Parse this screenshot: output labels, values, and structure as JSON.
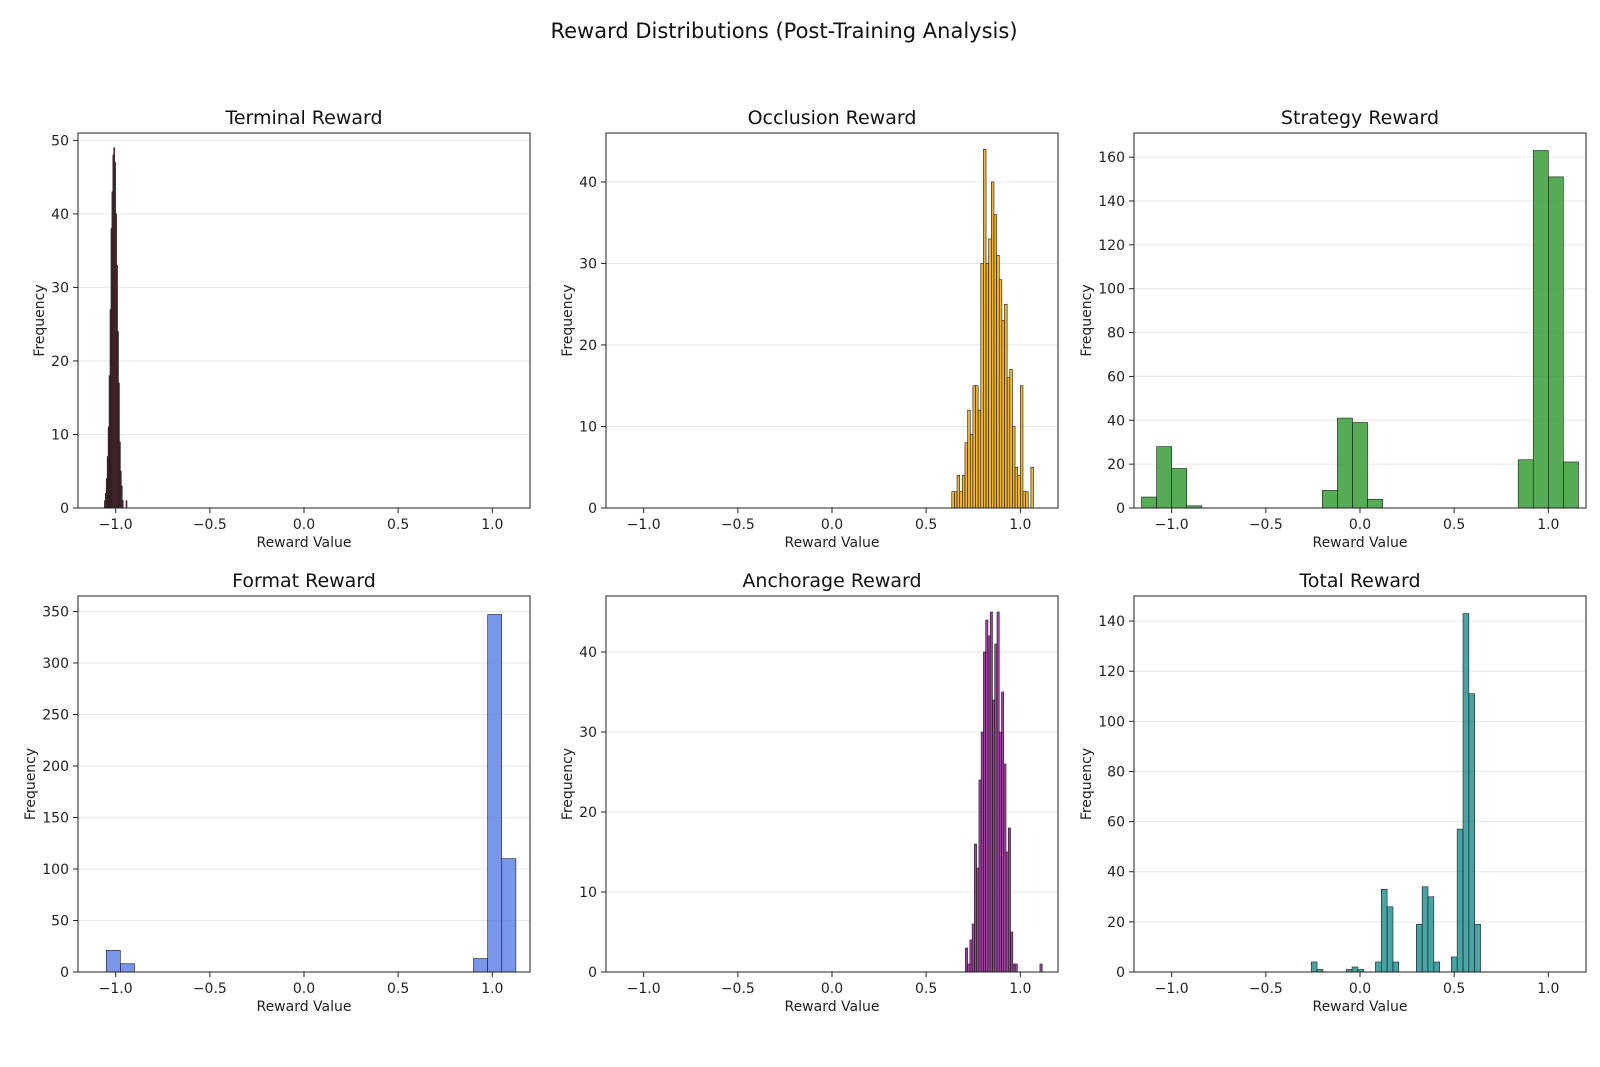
{
  "figure": {
    "title": "Reward Distributions (Post-Training Analysis)"
  },
  "chart_data": [
    {
      "type": "bar",
      "title": "Terminal Reward",
      "xlabel": "Reward Value",
      "ylabel": "Frequency",
      "color": "#8b1a2b",
      "xlim": [
        -1.2,
        1.2
      ],
      "ylim": [
        0,
        51
      ],
      "xticks": [
        -1.0,
        -0.5,
        0.0,
        0.5,
        1.0
      ],
      "xtick_labels": [
        "−1.0",
        "−0.5",
        "0.0",
        "0.5",
        "1.0"
      ],
      "yticks": [
        0,
        10,
        20,
        30,
        40,
        50
      ],
      "grid": true,
      "bin_width": 0.005,
      "bins": [
        [
          -1.06,
          1
        ],
        [
          -1.055,
          2
        ],
        [
          -1.05,
          4
        ],
        [
          -1.045,
          7
        ],
        [
          -1.04,
          11
        ],
        [
          -1.035,
          18
        ],
        [
          -1.03,
          27
        ],
        [
          -1.025,
          38
        ],
        [
          -1.02,
          43
        ],
        [
          -1.015,
          48
        ],
        [
          -1.01,
          49
        ],
        [
          -1.005,
          47
        ],
        [
          -1.0,
          40
        ],
        [
          -0.995,
          33
        ],
        [
          -0.99,
          24
        ],
        [
          -0.985,
          17
        ],
        [
          -0.98,
          9
        ],
        [
          -0.975,
          5
        ],
        [
          -0.97,
          3
        ],
        [
          -0.965,
          1
        ],
        [
          -0.945,
          1
        ]
      ]
    },
    {
      "type": "bar",
      "title": "Occlusion Reward",
      "xlabel": "Reward Value",
      "ylabel": "Frequency",
      "color": "#f0a500",
      "xlim": [
        -1.2,
        1.2
      ],
      "ylim": [
        0,
        46
      ],
      "xticks": [
        -1.0,
        -0.5,
        0.0,
        0.5,
        1.0
      ],
      "xtick_labels": [
        "−1.0",
        "−0.5",
        "0.0",
        "0.5",
        "1.0"
      ],
      "yticks": [
        0,
        10,
        20,
        30,
        40
      ],
      "grid": true,
      "bin_width": 0.014,
      "bins": [
        [
          0.636,
          2
        ],
        [
          0.65,
          2
        ],
        [
          0.664,
          4
        ],
        [
          0.678,
          2
        ],
        [
          0.692,
          4
        ],
        [
          0.706,
          8
        ],
        [
          0.72,
          12
        ],
        [
          0.734,
          9
        ],
        [
          0.748,
          15
        ],
        [
          0.762,
          15
        ],
        [
          0.776,
          12
        ],
        [
          0.79,
          30
        ],
        [
          0.804,
          44
        ],
        [
          0.818,
          30
        ],
        [
          0.832,
          33
        ],
        [
          0.846,
          40
        ],
        [
          0.86,
          36
        ],
        [
          0.874,
          31
        ],
        [
          0.888,
          28
        ],
        [
          0.902,
          23
        ],
        [
          0.916,
          25
        ],
        [
          0.93,
          16
        ],
        [
          0.944,
          17
        ],
        [
          0.958,
          10
        ],
        [
          0.972,
          5
        ],
        [
          0.986,
          4
        ],
        [
          1.0,
          15
        ],
        [
          1.014,
          2
        ],
        [
          1.028,
          2
        ],
        [
          1.056,
          5
        ]
      ]
    },
    {
      "type": "bar",
      "title": "Strategy Reward",
      "xlabel": "Reward Value",
      "ylabel": "Frequency",
      "color": "#2f9a2f",
      "xlim": [
        -1.2,
        1.2
      ],
      "ylim": [
        0,
        171
      ],
      "xticks": [
        -1.0,
        -0.5,
        0.0,
        0.5,
        1.0
      ],
      "xtick_labels": [
        "−1.0",
        "−0.5",
        "0.0",
        "0.5",
        "1.0"
      ],
      "yticks": [
        0,
        20,
        40,
        60,
        80,
        100,
        120,
        140,
        160
      ],
      "grid": true,
      "bin_width": 0.08,
      "bins": [
        [
          -1.16,
          5
        ],
        [
          -1.08,
          28
        ],
        [
          -1.0,
          18
        ],
        [
          -0.92,
          1
        ],
        [
          -0.2,
          8
        ],
        [
          -0.12,
          41
        ],
        [
          -0.04,
          39
        ],
        [
          0.04,
          4
        ],
        [
          0.84,
          22
        ],
        [
          0.92,
          163
        ],
        [
          1.0,
          151
        ],
        [
          1.08,
          21
        ]
      ]
    },
    {
      "type": "bar",
      "title": "Format Reward",
      "xlabel": "Reward Value",
      "ylabel": "Frequency",
      "color": "#5b7fe6",
      "xlim": [
        -1.2,
        1.2
      ],
      "ylim": [
        0,
        365
      ],
      "xticks": [
        -1.0,
        -0.5,
        0.0,
        0.5,
        1.0
      ],
      "xtick_labels": [
        "−1.0",
        "−0.5",
        "0.0",
        "0.5",
        "1.0"
      ],
      "yticks": [
        0,
        50,
        100,
        150,
        200,
        250,
        300,
        350
      ],
      "grid": true,
      "bin_width": 0.075,
      "bins": [
        [
          -1.05,
          21
        ],
        [
          -0.975,
          8
        ],
        [
          0.9,
          13
        ],
        [
          0.975,
          347
        ],
        [
          1.05,
          110
        ]
      ]
    },
    {
      "type": "bar",
      "title": "Anchorage Reward",
      "xlabel": "Reward Value",
      "ylabel": "Frequency",
      "color": "#8b1a8b",
      "xlim": [
        -1.2,
        1.2
      ],
      "ylim": [
        0,
        47
      ],
      "xticks": [
        -1.0,
        -0.5,
        0.0,
        0.5,
        1.0
      ],
      "xtick_labels": [
        "−1.0",
        "−0.5",
        "0.0",
        "0.5",
        "1.0"
      ],
      "yticks": [
        0,
        10,
        20,
        30,
        40
      ],
      "grid": true,
      "bin_width": 0.012,
      "bins": [
        [
          0.708,
          3
        ],
        [
          0.72,
          1
        ],
        [
          0.732,
          4
        ],
        [
          0.744,
          6
        ],
        [
          0.756,
          16
        ],
        [
          0.768,
          13
        ],
        [
          0.78,
          24
        ],
        [
          0.792,
          30
        ],
        [
          0.804,
          40
        ],
        [
          0.816,
          44
        ],
        [
          0.828,
          42
        ],
        [
          0.84,
          45
        ],
        [
          0.852,
          34
        ],
        [
          0.864,
          41
        ],
        [
          0.876,
          45
        ],
        [
          0.888,
          30
        ],
        [
          0.9,
          35
        ],
        [
          0.912,
          26
        ],
        [
          0.924,
          15
        ],
        [
          0.936,
          18
        ],
        [
          0.948,
          5
        ],
        [
          0.96,
          1
        ],
        [
          0.972,
          1
        ],
        [
          1.104,
          1
        ]
      ]
    },
    {
      "type": "bar",
      "title": "Total Reward",
      "xlabel": "Reward Value",
      "ylabel": "Frequency",
      "color": "#1f9090",
      "xlim": [
        -1.2,
        1.2
      ],
      "ylim": [
        0,
        150
      ],
      "xticks": [
        -1.0,
        -0.5,
        0.0,
        0.5,
        1.0
      ],
      "xtick_labels": [
        "−1.0",
        "−0.5",
        "0.0",
        "0.5",
        "1.0"
      ],
      "yticks": [
        0,
        20,
        40,
        60,
        80,
        100,
        120,
        140
      ],
      "grid": true,
      "bin_width": 0.031,
      "bins": [
        [
          -0.259,
          4
        ],
        [
          -0.228,
          1
        ],
        [
          -0.073,
          1
        ],
        [
          -0.042,
          2
        ],
        [
          -0.011,
          1
        ],
        [
          0.082,
          4
        ],
        [
          0.113,
          33
        ],
        [
          0.144,
          26
        ],
        [
          0.175,
          4
        ],
        [
          0.299,
          19
        ],
        [
          0.33,
          34
        ],
        [
          0.361,
          30
        ],
        [
          0.392,
          4
        ],
        [
          0.485,
          6
        ],
        [
          0.516,
          57
        ],
        [
          0.547,
          143
        ],
        [
          0.578,
          111
        ],
        [
          0.609,
          19
        ]
      ]
    }
  ]
}
